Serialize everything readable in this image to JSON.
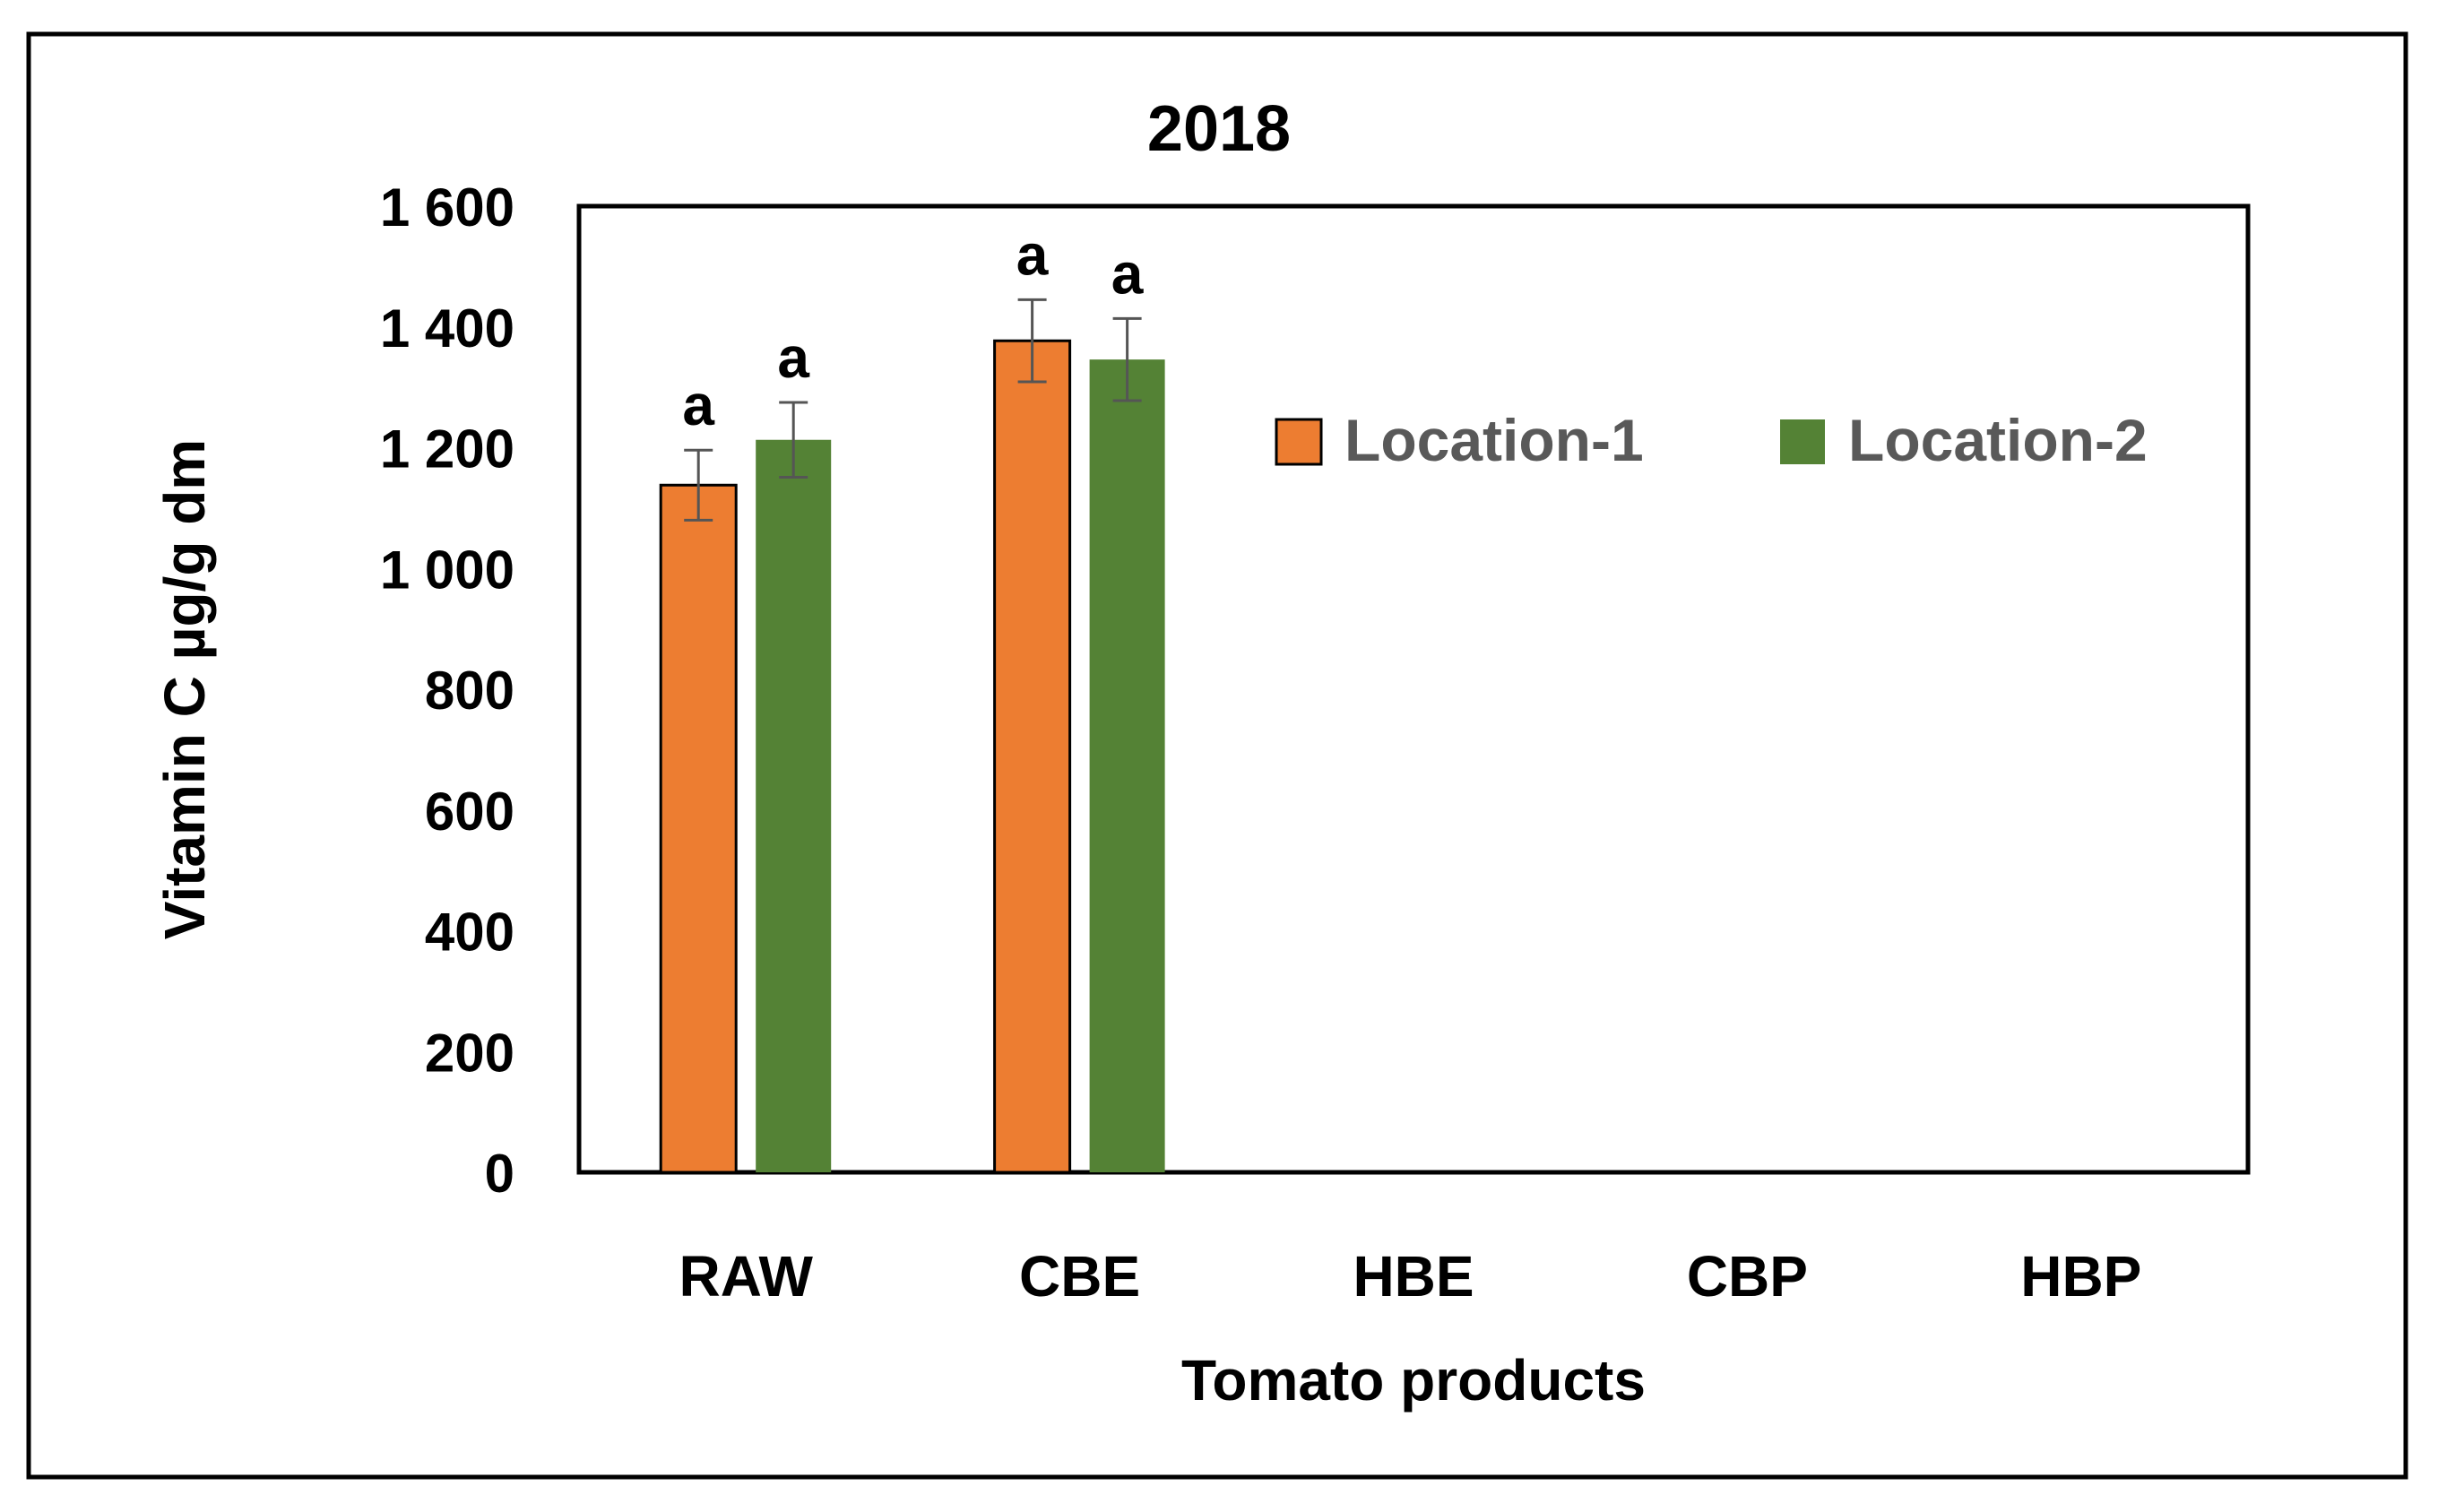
{
  "chart_data": {
    "type": "bar",
    "title": "2018",
    "xlabel": "Tomato products",
    "ylabel": "Vitamin C µg/g dm",
    "categories": [
      "RAW",
      "CBE",
      "HBE",
      "CBP",
      "HBP"
    ],
    "ylim": [
      0,
      1600
    ],
    "yticks": [
      0,
      200,
      400,
      600,
      800,
      1000,
      1200,
      1400,
      1600
    ],
    "ytick_labels": [
      "0",
      "200",
      "400",
      "600",
      "800",
      "1 000",
      "1 200",
      "1 400",
      "1 600"
    ],
    "legend_position": "top-right",
    "grid": false,
    "series": [
      {
        "name": "Location-1",
        "color": "#ED7D31",
        "values": [
          1138,
          1377,
          null,
          null,
          null
        ],
        "errors": [
          58,
          68,
          null,
          null,
          null
        ],
        "significance": [
          "a",
          "a",
          null,
          null,
          null
        ]
      },
      {
        "name": "Location-2",
        "color": "#548235",
        "values": [
          1213,
          1346,
          null,
          null,
          null
        ],
        "errors": [
          62,
          68,
          null,
          null,
          null
        ],
        "significance": [
          "a",
          "a",
          null,
          null,
          null
        ]
      }
    ]
  }
}
